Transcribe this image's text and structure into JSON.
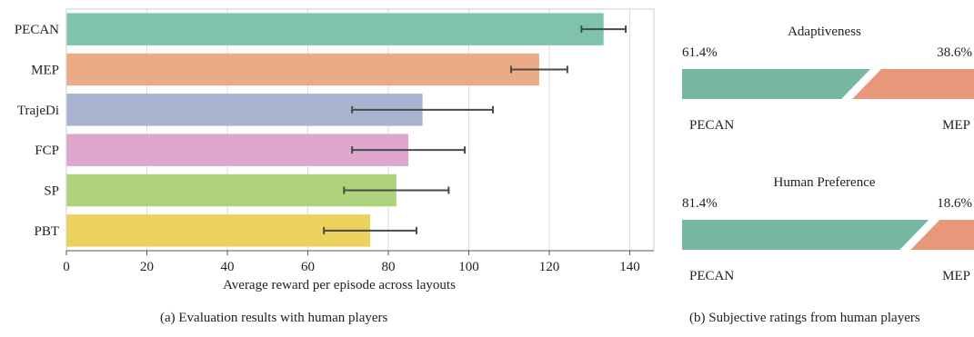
{
  "colors": {
    "PECAN": "#7fc3ae",
    "MEP": "#ecab87",
    "TrajeDi": "#a7b3cf",
    "FCP": "#dfa6ce",
    "SP": "#afd37b",
    "PBT": "#ebd15d",
    "grid": "#dcdcdc",
    "errorbar": "#4a4a4a",
    "ratingA": "#75b7a0",
    "ratingB": "#e9977a"
  },
  "chart_data": [
    {
      "type": "bar",
      "orientation": "horizontal",
      "categories": [
        "PECAN",
        "MEP",
        "TrajeDi",
        "FCP",
        "SP",
        "PBT"
      ],
      "values": [
        133.5,
        117.5,
        88.5,
        85,
        82,
        75.5
      ],
      "error_low": [
        128,
        110.5,
        71,
        71,
        69,
        64
      ],
      "error_high": [
        139,
        124.5,
        106,
        99,
        95,
        87
      ],
      "xlabel": "Average reward per episode across layouts",
      "ylabel": "",
      "xlim": [
        0,
        146
      ],
      "xticks": [
        0,
        20,
        40,
        60,
        80,
        100,
        120,
        140
      ],
      "grid": "vertical",
      "caption": "(a) Evaluation results with human players"
    },
    {
      "type": "bar",
      "orientation": "horizontal-stacked-percent",
      "caption": "(b) Subjective ratings from human players",
      "panels": [
        {
          "title": "Adaptiveness",
          "left_label": "PECAN",
          "right_label": "MEP",
          "left_value_text": "61.4%",
          "right_value_text": "38.6%",
          "left_value": 61.4,
          "right_value": 38.6
        },
        {
          "title": "Human Preference",
          "left_label": "PECAN",
          "right_label": "MEP",
          "left_value_text": "81.4%",
          "right_value_text": "18.6%",
          "left_value": 81.4,
          "right_value": 18.6
        }
      ]
    }
  ]
}
